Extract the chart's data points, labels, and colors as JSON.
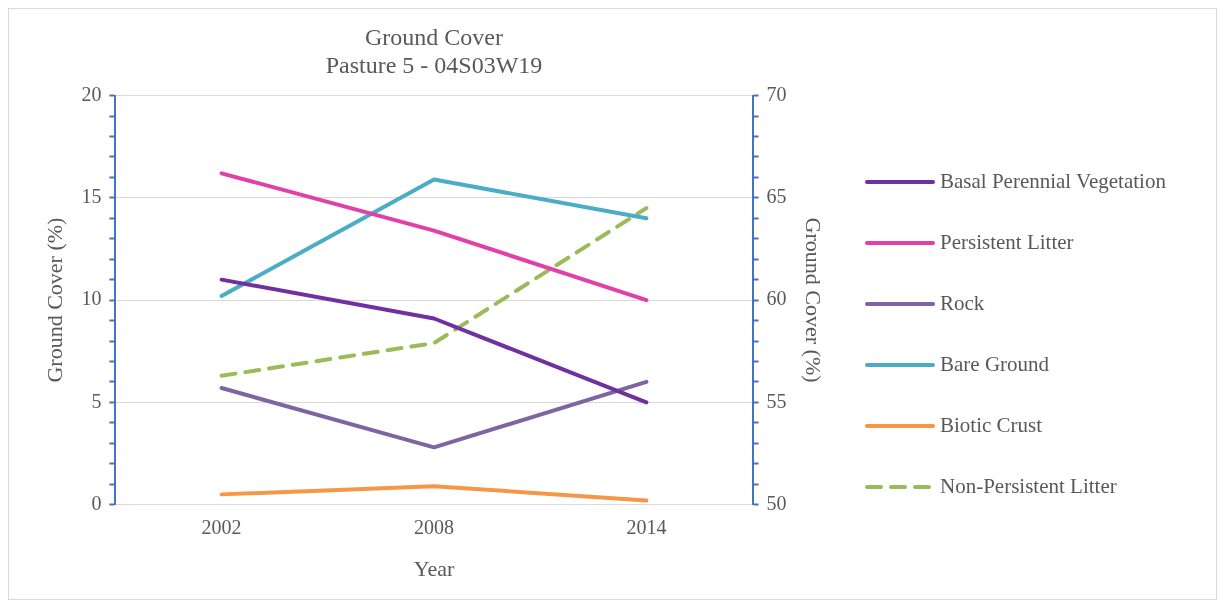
{
  "chart_data": {
    "type": "line",
    "title": "Ground Cover",
    "subtitle": "Pasture 5 - 04S03W19",
    "xlabel": "Year",
    "ylabel": "Ground Cover (%)",
    "y2label": "Ground Cover (%)",
    "categories": [
      "2002",
      "2008",
      "2014"
    ],
    "series": [
      {
        "name": "Basal Perennial Vegetation",
        "color": "#7030a0",
        "values": [
          11,
          9.1,
          5
        ]
      },
      {
        "name": "Persistent Litter",
        "color": "#e040a8",
        "values": [
          16.2,
          13.4,
          10
        ]
      },
      {
        "name": "Rock",
        "color": "#8064a2",
        "values": [
          5.7,
          2.8,
          6
        ]
      },
      {
        "name": "Bare Ground",
        "color": "#4bacc6",
        "values": [
          10.2,
          15.9,
          14
        ]
      },
      {
        "name": "Biotic Crust",
        "color": "#f79646",
        "values": [
          0.5,
          0.9,
          0.2
        ]
      },
      {
        "name": "Non-Persistent Litter",
        "color": "#9bbb59",
        "values": [
          56.3,
          57.9,
          64.5
        ],
        "axis": "y2",
        "line_style": "dashed"
      }
    ],
    "ylim": [
      0,
      20
    ],
    "yticks": [
      0,
      {
        "value": 1,
        "label": null
      },
      {
        "value": 2,
        "label": null
      },
      {
        "value": 3,
        "label": null
      },
      {
        "value": 4,
        "label": null
      },
      5,
      {
        "value": 6,
        "label": null
      },
      {
        "value": 7,
        "label": null
      },
      {
        "value": 8,
        "label": null
      },
      {
        "value": 9,
        "label": null
      },
      10,
      {
        "value": 11,
        "label": null
      },
      {
        "value": 12,
        "label": null
      },
      {
        "value": 13,
        "label": null
      },
      {
        "value": 14,
        "label": null
      },
      15,
      {
        "value": 16,
        "label": null
      },
      {
        "value": 17,
        "label": null
      },
      {
        "value": 18,
        "label": null
      },
      {
        "value": 19,
        "label": null
      },
      20
    ],
    "y2lim": [
      50,
      70
    ],
    "y2ticks": [
      50,
      {
        "value": 51,
        "label": null
      },
      {
        "value": 52,
        "label": null
      },
      {
        "value": 53,
        "label": null
      },
      {
        "value": 54,
        "label": null
      },
      55,
      {
        "value": 56,
        "label": null
      },
      {
        "value": 57,
        "label": null
      },
      {
        "value": 58,
        "label": null
      },
      {
        "value": 59,
        "label": null
      },
      60,
      {
        "value": 61,
        "label": null
      },
      {
        "value": 62,
        "label": null
      },
      {
        "value": 63,
        "label": null
      },
      {
        "value": 64,
        "label": null
      },
      65,
      {
        "value": 66,
        "label": null
      },
      {
        "value": 67,
        "label": null
      },
      {
        "value": 68,
        "label": null
      },
      {
        "value": 69,
        "label": null
      },
      70
    ],
    "grid": "y",
    "legend": "right",
    "marker": "none"
  }
}
